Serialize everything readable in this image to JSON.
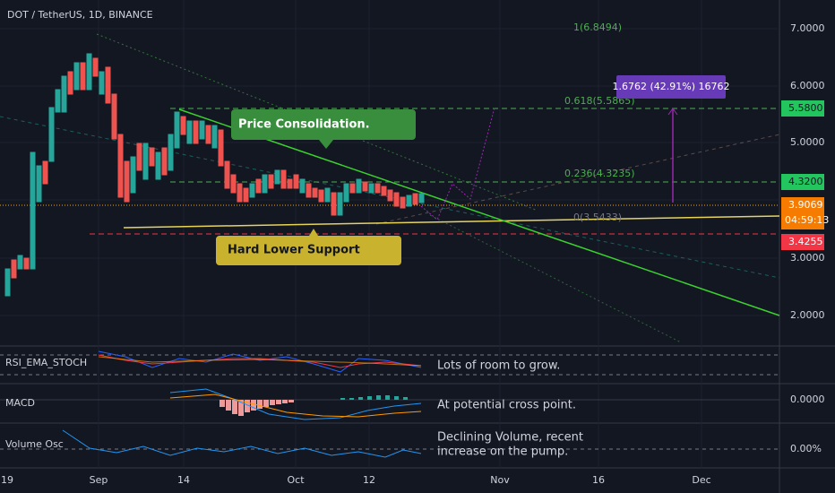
{
  "header": {
    "title": "DOT / TetherUS, 1D, BINANCE"
  },
  "price_axis": [
    "7.0000",
    "6.0000",
    "5.0000",
    "3.0000",
    "2.0000"
  ],
  "price_tags": {
    "target": "5.5800",
    "resistance": "4.3200",
    "last": "3.9069",
    "countdown": "04:59:13",
    "support": "3.4255"
  },
  "fib_levels": [
    "1(6.8494)",
    "0.618(5.5865)",
    "0.236(4.3235)",
    "0(3.5433)"
  ],
  "measure": "1.6762 (42.91%) 16762",
  "annotations": {
    "consolidation": "Price Consolidation.",
    "support": "Hard Lower Support"
  },
  "indicators": [
    {
      "name": "RSI_EMA_STOCH",
      "note": "Lots of room to grow."
    },
    {
      "name": "MACD",
      "note": "At potential cross point.",
      "axis": "0.0000"
    },
    {
      "name": "Volume Osc",
      "note": [
        "Declining Volume, recent",
        "increase on the pump."
      ],
      "axis": "0.00%"
    }
  ],
  "date_axis": [
    "19",
    "Sep",
    "14",
    "Oct",
    "12",
    "Nov",
    "16",
    "Dec"
  ]
}
